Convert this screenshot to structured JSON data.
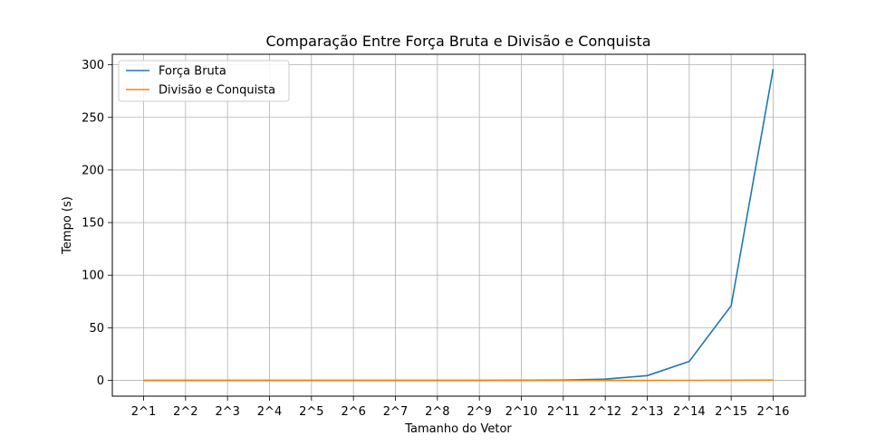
{
  "chart_data": {
    "type": "line",
    "title": "Comparação Entre Força Bruta e Divisão e Conquista",
    "xlabel": "Tamanho do Vetor",
    "ylabel": "Tempo (s)",
    "categories": [
      "2^1",
      "2^2",
      "2^3",
      "2^4",
      "2^5",
      "2^6",
      "2^7",
      "2^8",
      "2^9",
      "2^10",
      "2^11",
      "2^12",
      "2^13",
      "2^14",
      "2^15",
      "2^16"
    ],
    "ylim": [
      -15,
      310
    ],
    "yticks": [
      0,
      50,
      100,
      150,
      200,
      250,
      300
    ],
    "grid": true,
    "legend_position": "top-left",
    "series": [
      {
        "name": "Força Bruta",
        "color": "#1f77b4",
        "values": [
          0,
          0,
          0,
          0,
          0,
          0,
          0,
          0,
          0.02,
          0.07,
          0.3,
          1.2,
          4.5,
          18,
          71,
          296
        ]
      },
      {
        "name": "Divisão e Conquista",
        "color": "#ff7f0e",
        "values": [
          0,
          0,
          0,
          0,
          0,
          0,
          0,
          0,
          0,
          0,
          0,
          0.01,
          0.02,
          0.05,
          0.12,
          0.3
        ]
      }
    ]
  }
}
